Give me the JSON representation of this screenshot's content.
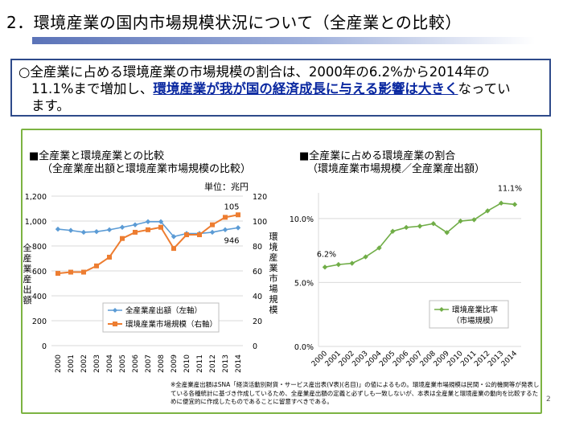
{
  "page": {
    "title": "2．環境産業の国内市場規模状況について（全産業との比較）",
    "page_number": "2"
  },
  "summary": {
    "part1": "○全産業に占める環境産業の市場規模の割合は、2000年の6.2%から2014年の",
    "part2": "11.1%まで増加し、",
    "highlight": "環境産業が我が国の経済成長に与える影響は大きく",
    "part3": "なってい",
    "part4": "ます。"
  },
  "left_chart": {
    "heading": "■全産業と環境産業との比較",
    "subheading": "（全産業産出額と環境産業市場規模の比較）",
    "unit_label": "単位：兆円",
    "left_axis_label": "全産業産出額",
    "right_axis_label": "環境産業市場規模",
    "value_label_env_end": "105",
    "value_label_all_end": "946",
    "legend_all": "全産業産出額（左軸）",
    "legend_env": "環境産業市場規模（右軸）"
  },
  "right_chart": {
    "heading": "■全産業に占める環境産業の割合",
    "subheading": "（環境産業市場規模／全産業産出額）",
    "label_start": "6.2%",
    "label_end": "11.1%",
    "legend_line1": "環境産業比率",
    "legend_line2": "（市場規模）"
  },
  "footnote": "※全産業産出額はSNA「経済活動別財貨・サービス産出表(V表)(名目)」の値によるもの。環境産業市場規模は民間・公的機関等が発表している各種統計に基づき作成しているため、全産業産出額の定義と必ずしも一致しないが、本表は全産業と環境産業の動向を比較するために便宜的に作成したものであることに留意すべきである。",
  "colors": {
    "all_industry_series": "#5b9bd5",
    "environment_series": "#ed7d31",
    "ratio_series": "#70ad47",
    "panel_border": "#7cb342",
    "summary_border": "#2e4a8a",
    "highlight_text": "#0a28a0"
  },
  "chart_data": [
    {
      "type": "line",
      "title": "全産業と環境産業との比較",
      "x": [
        "2000",
        "2001",
        "2002",
        "2003",
        "2004",
        "2005",
        "2006",
        "2007",
        "2008",
        "2009",
        "2010",
        "2011",
        "2012",
        "2013",
        "2014"
      ],
      "series": [
        {
          "name": "全産業産出額（左軸）",
          "axis": "left",
          "values": [
            935,
            925,
            910,
            915,
            930,
            950,
            970,
            995,
            995,
            875,
            900,
            900,
            910,
            930,
            946
          ]
        },
        {
          "name": "環境産業市場規模（右軸）",
          "axis": "right",
          "values": [
            58,
            59,
            59,
            64,
            71,
            86,
            91,
            93,
            95,
            78,
            89,
            89,
            97,
            103,
            105
          ]
        }
      ],
      "y_left": {
        "range": [
          0,
          1200
        ],
        "ticks": [
          "0",
          "200",
          "400",
          "600",
          "800",
          "1,000",
          "1,200"
        ]
      },
      "y_right": {
        "range": [
          0,
          120
        ],
        "ticks": [
          "0",
          "20",
          "40",
          "60",
          "80",
          "100",
          "120"
        ]
      },
      "ylabel": "全産業産出額",
      "y2label": "環境産業市場規模",
      "grid": true,
      "legend": "bottom-center"
    },
    {
      "type": "line",
      "title": "全産業に占める環境産業の割合",
      "x": [
        "2000",
        "2001",
        "2002",
        "2003",
        "2004",
        "2005",
        "2006",
        "2007",
        "2008",
        "2009",
        "2010",
        "2011",
        "2012",
        "2013",
        "2014"
      ],
      "series": [
        {
          "name": "環境産業比率（市場規模）",
          "values": [
            6.2,
            6.4,
            6.5,
            7.0,
            7.7,
            9.0,
            9.3,
            9.4,
            9.6,
            8.9,
            9.8,
            9.9,
            10.6,
            11.2,
            11.1
          ]
        }
      ],
      "y": {
        "range": [
          0,
          12
        ],
        "ticks": [
          "0.0%",
          "5.0%",
          "10.0%"
        ],
        "tick_values": [
          0,
          5,
          10
        ]
      },
      "grid": true,
      "legend": "bottom-right"
    }
  ]
}
